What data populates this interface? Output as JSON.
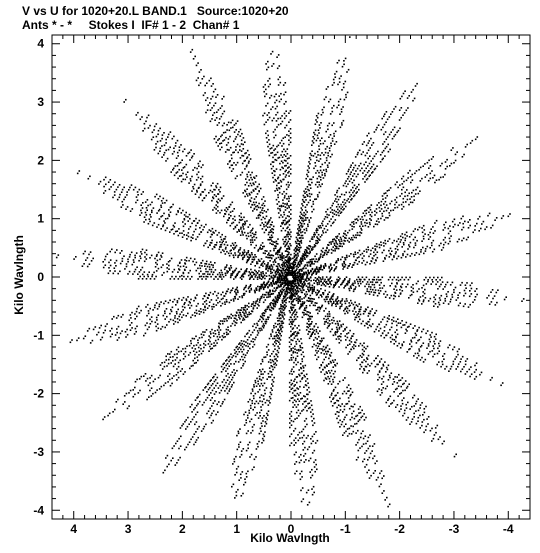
{
  "header": {
    "line1": "V vs U for 1020+20.L BAND.1   Source:1020+20",
    "line2": "Ants * - *     Stokes I  IF# 1 - 2  Chan# 1"
  },
  "chart_data": {
    "type": "scatter",
    "title": "V vs U for 1020+20.L BAND.1   Source:1020+20",
    "subtitle": "Ants * - *     Stokes I  IF# 1 - 2  Chan# 1",
    "xlabel": "Kilo Wavlngth",
    "ylabel": "Kilo Wavlngth",
    "xlim": [
      4.4,
      -4.4
    ],
    "ylim": [
      -4.15,
      4.15
    ],
    "x_ticks": [
      4,
      3,
      2,
      1,
      0,
      -1,
      -2,
      -3,
      -4
    ],
    "y_ticks": [
      4,
      3,
      2,
      1,
      0,
      -1,
      -2,
      -3,
      -4
    ],
    "grid": false,
    "uv_tracks": {
      "description_arms_deg": [
        5,
        25,
        45,
        65,
        85,
        105,
        125,
        145,
        165
      ],
      "max_radius": 4.3
    }
  }
}
